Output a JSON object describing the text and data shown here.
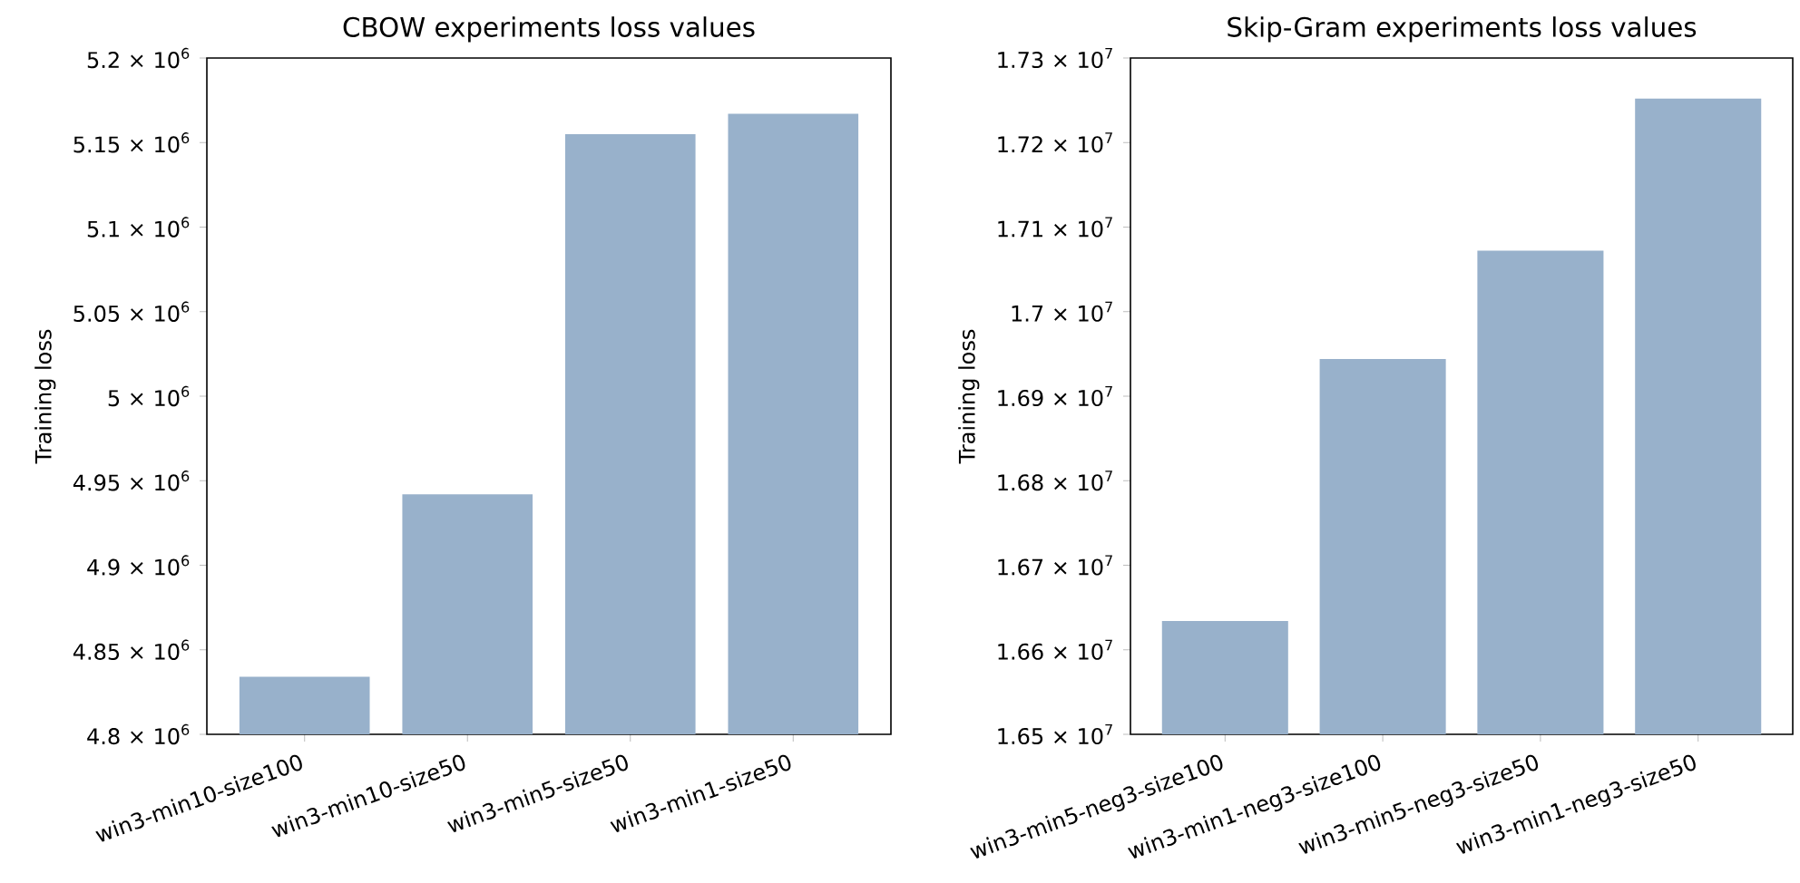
{
  "chart_data": [
    {
      "type": "bar",
      "title": "CBOW experiments loss values",
      "ylabel": "Training loss",
      "categories": [
        "win3-min10-size100",
        "win3-min10-size50",
        "win3-min5-size50",
        "win3-min1-size50"
      ],
      "values": [
        4834000,
        4942000,
        5155000,
        5167000
      ],
      "color": "#98b1cb",
      "ylim": [
        4800000,
        5200000
      ],
      "yticks": [
        {
          "value": 4800000,
          "label": "4.8 × 10$^{6}$"
        },
        {
          "value": 4850000,
          "label": "4.85 × 10$^{6}$"
        },
        {
          "value": 4900000,
          "label": "4.9 × 10$^{6}$"
        },
        {
          "value": 4950000,
          "label": "4.95 × 10$^{6}$"
        },
        {
          "value": 5000000,
          "label": "5 × 10$^{6}$"
        },
        {
          "value": 5050000,
          "label": "5.05 × 10$^{6}$"
        },
        {
          "value": 5100000,
          "label": "5.1 × 10$^{6}$"
        },
        {
          "value": 5150000,
          "label": "5.15 × 10$^{6}$"
        },
        {
          "value": 5200000,
          "label": "5.2 × 10$^{6}$"
        }
      ]
    },
    {
      "type": "bar",
      "title": "Skip-Gram experiments loss values",
      "ylabel": "Training loss",
      "categories": [
        "win3-min5-neg3-size100",
        "win3-min1-neg3-size100",
        "win3-min5-neg3-size50",
        "win3-min1-neg3-size50"
      ],
      "values": [
        16634000,
        16944000,
        17072000,
        17252000
      ],
      "color": "#98b1cb",
      "ylim": [
        16500000,
        17300000
      ],
      "yticks": [
        {
          "value": 16500000,
          "label": "1.65 × 10$^{7}$"
        },
        {
          "value": 16600000,
          "label": "1.66 × 10$^{7}$"
        },
        {
          "value": 16700000,
          "label": "1.67 × 10$^{7}$"
        },
        {
          "value": 16800000,
          "label": "1.68 × 10$^{7}$"
        },
        {
          "value": 16900000,
          "label": "1.69 × 10$^{7}$"
        },
        {
          "value": 17000000,
          "label": "1.7 × 10$^{7}$"
        },
        {
          "value": 17100000,
          "label": "1.71 × 10$^{7}$"
        },
        {
          "value": 17200000,
          "label": "1.72 × 10$^{7}$"
        },
        {
          "value": 17300000,
          "label": "1.73 × 10$^{7}$"
        }
      ]
    }
  ]
}
